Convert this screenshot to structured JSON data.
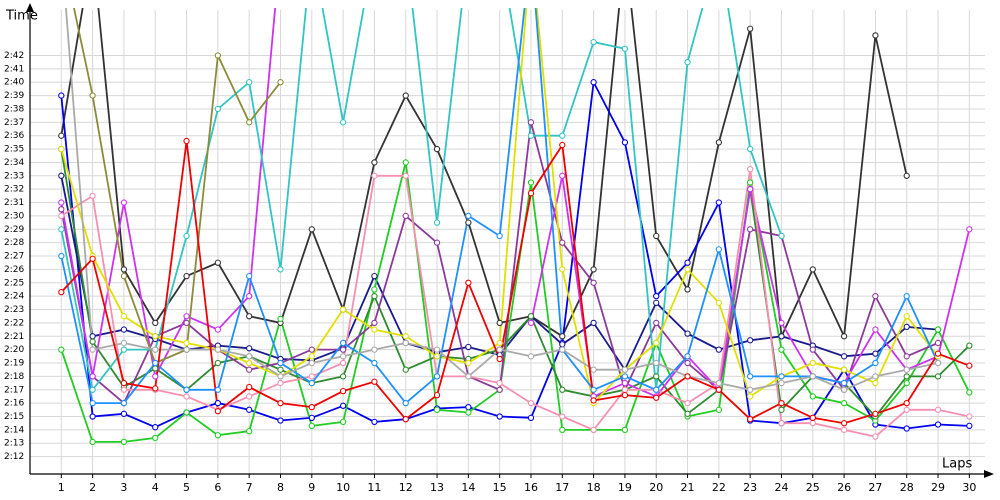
{
  "chart_data": {
    "type": "line",
    "y_label": "Time",
    "x_label": "Laps",
    "x": [
      1,
      2,
      3,
      4,
      5,
      6,
      7,
      8,
      9,
      10,
      11,
      12,
      13,
      14,
      15,
      16,
      17,
      18,
      19,
      20,
      21,
      22,
      23,
      24,
      25,
      26,
      27,
      28,
      29,
      30
    ],
    "xlim": [
      0,
      30.5
    ],
    "xticks": [
      1,
      2,
      3,
      4,
      5,
      6,
      7,
      8,
      9,
      10,
      11,
      12,
      13,
      14,
      15,
      16,
      17,
      18,
      19,
      20,
      21,
      22,
      23,
      24,
      25,
      26,
      27,
      28,
      29,
      30
    ],
    "ylim": [
      130.7,
      165.4
    ],
    "yticks": [
      {
        "value": 132,
        "label": "2:12"
      },
      {
        "value": 133,
        "label": "2:13"
      },
      {
        "value": 134,
        "label": "2:14"
      },
      {
        "value": 135,
        "label": "2:15"
      },
      {
        "value": 136,
        "label": "2:16"
      },
      {
        "value": 137,
        "label": "2:17"
      },
      {
        "value": 138,
        "label": "2:18"
      },
      {
        "value": 139,
        "label": "2:19"
      },
      {
        "value": 140,
        "label": "2:20"
      },
      {
        "value": 141,
        "label": "2:21"
      },
      {
        "value": 142,
        "label": "2:22"
      },
      {
        "value": 143,
        "label": "2:23"
      },
      {
        "value": 144,
        "label": "2:24"
      },
      {
        "value": 145,
        "label": "2:25"
      },
      {
        "value": 146,
        "label": "2:26"
      },
      {
        "value": 147,
        "label": "2:27"
      },
      {
        "value": 148,
        "label": "2:28"
      },
      {
        "value": 149,
        "label": "2:29"
      },
      {
        "value": 150,
        "label": "2:30"
      },
      {
        "value": 151,
        "label": "2:31"
      },
      {
        "value": 152,
        "label": "2:32"
      },
      {
        "value": 153,
        "label": "2:33"
      },
      {
        "value": 154,
        "label": "2:34"
      },
      {
        "value": 155,
        "label": "2:35"
      },
      {
        "value": 156,
        "label": "2:36"
      },
      {
        "value": 157,
        "label": "2:37"
      },
      {
        "value": 158,
        "label": "2:38"
      },
      {
        "value": 159,
        "label": "2:39"
      },
      {
        "value": 160,
        "label": "2:40"
      },
      {
        "value": 161,
        "label": "2:41"
      },
      {
        "value": 162,
        "label": "2:42"
      }
    ],
    "grid": true,
    "series": [
      {
        "color": "#333333",
        "values": [
          156,
          170,
          146,
          142,
          145.5,
          146.5,
          142.5,
          142,
          149,
          143,
          154,
          159,
          155,
          149.5,
          142,
          142.5,
          141,
          146,
          170,
          148.5,
          144.5,
          155.5,
          164,
          141,
          146,
          141,
          163.5,
          153,
          null,
          null
        ]
      },
      {
        "color": "#0000ee",
        "values": [
          159,
          135,
          135.2,
          134.2,
          135.3,
          136,
          135.5,
          134.7,
          134.9,
          135.8,
          134.6,
          134.8,
          135.6,
          135.7,
          135,
          134.9,
          140.5,
          160,
          155.5,
          144,
          146.5,
          151,
          134.7,
          134.5,
          134.9,
          138.5,
          134.4,
          134.1,
          134.4,
          134.3
        ]
      },
      {
        "color": "#1a1a8c",
        "values": [
          153,
          141,
          141.5,
          140.8,
          140,
          140.3,
          140.1,
          139.3,
          139.2,
          140.1,
          145.5,
          140.5,
          139.8,
          140.2,
          139.6,
          142.5,
          140.4,
          142,
          138.5,
          143.5,
          141.2,
          140,
          140.7,
          141,
          140.3,
          139.5,
          139.7,
          141.7,
          141.5,
          null
        ]
      },
      {
        "color": "#22cc22",
        "values": [
          140,
          133.1,
          133.1,
          133.4,
          135.3,
          133.6,
          133.9,
          142.3,
          134.3,
          134.6,
          144.5,
          154,
          135.5,
          135.3,
          137,
          152.5,
          134,
          134,
          134,
          140.5,
          135,
          135.5,
          152.5,
          140,
          136.5,
          136,
          134.7,
          137.5,
          141.5,
          136.8
        ]
      },
      {
        "color": "#2e8b2e",
        "values": [
          155,
          140.6,
          137.2,
          138.6,
          137,
          139,
          139.5,
          138.5,
          137.5,
          138,
          144,
          138.5,
          139.5,
          139.3,
          140,
          142.5,
          137,
          136.5,
          137,
          138,
          135.2,
          137,
          152,
          135.5,
          138,
          137.5,
          135,
          138,
          138,
          140.3
        ]
      },
      {
        "color": "#8b3a9a",
        "values": [
          150.5,
          138,
          136,
          141,
          142,
          140,
          138.5,
          139,
          140,
          140,
          142,
          150,
          148,
          138,
          137,
          157,
          148,
          145,
          137,
          142,
          139,
          137,
          149,
          148.5,
          140,
          137,
          144,
          139.5,
          140.5,
          null
        ]
      },
      {
        "color": "#cc33ee",
        "values": [
          151,
          138,
          151,
          138,
          142.5,
          141.5,
          144,
          170,
          null,
          null,
          null,
          null,
          null,
          null,
          null,
          142,
          153,
          136.5,
          137.5,
          136.5,
          139.5,
          137,
          152,
          142,
          138,
          137.5,
          141.5,
          138.5,
          139.5,
          149
        ]
      },
      {
        "color": "#f590b0",
        "values": [
          150,
          151.5,
          137,
          137,
          136.5,
          135.5,
          136.5,
          137.5,
          138,
          139,
          153,
          153,
          138,
          138,
          137.5,
          136,
          135,
          134,
          137,
          137,
          136,
          137.5,
          153.5,
          134.5,
          134.5,
          134,
          133.5,
          135.5,
          135.5,
          135
        ]
      },
      {
        "color": "#33c4c4",
        "values": [
          149,
          137,
          140,
          140,
          148.5,
          158,
          160,
          146,
          170,
          157,
          170,
          170,
          149.5,
          170,
          170,
          156,
          156,
          163,
          162.5,
          137,
          161.5,
          170,
          155,
          148.5,
          null,
          null,
          null,
          null,
          null,
          null
        ]
      },
      {
        "color": "#e0e000",
        "values": [
          155,
          147,
          142.5,
          141,
          140.5,
          140,
          139,
          138,
          139.5,
          143,
          141.5,
          141,
          139.5,
          139,
          140.5,
          170,
          146,
          136,
          138.5,
          140.5,
          146,
          143.5,
          136.5,
          138,
          139,
          138.5,
          137.5,
          142.5,
          139.5,
          null
        ]
      },
      {
        "color": "#8b8b3a",
        "values": [
          170,
          159,
          145.5,
          139,
          140,
          162,
          157,
          160,
          null,
          null,
          null,
          null,
          null,
          null,
          null,
          null,
          null,
          null,
          null,
          null,
          null,
          null,
          null,
          null,
          null,
          null,
          null,
          null,
          null,
          null
        ]
      },
      {
        "color": "#1e90ff",
        "values": [
          147,
          136,
          136,
          139,
          137,
          137,
          145.5,
          139,
          137.5,
          140.5,
          139,
          136,
          138,
          150,
          148.5,
          170,
          140,
          137,
          138,
          137,
          139.5,
          147.5,
          138,
          138,
          138,
          137.5,
          139,
          144,
          139,
          null
        ]
      },
      {
        "color": "#aaaaaa",
        "values": [
          170,
          140,
          140.5,
          140,
          140,
          140,
          139.5,
          138,
          139,
          139.5,
          140,
          140.5,
          140,
          138,
          140,
          139.5,
          140,
          138.5,
          138.5,
          139,
          138,
          137.5,
          137,
          137.5,
          138,
          137,
          138,
          138.5,
          139,
          null
        ]
      },
      {
        "color": "#ee0000",
        "values": [
          144.3,
          146.8,
          137.5,
          137.1,
          155.6,
          135.4,
          137.2,
          136,
          135.7,
          136.9,
          137.6,
          134.8,
          136.6,
          145,
          139.3,
          151.7,
          155.3,
          136.2,
          136.6,
          136.4,
          138,
          137,
          134.8,
          136,
          134.9,
          134.5,
          135.2,
          136,
          139.7,
          138.8
        ]
      }
    ]
  }
}
